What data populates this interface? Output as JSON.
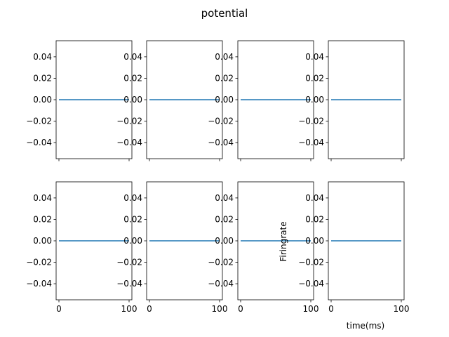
{
  "figure": {
    "title": "potential"
  },
  "chart_data": {
    "type": "line",
    "layout": {
      "rows": 2,
      "cols": 4
    },
    "x": [
      0,
      100
    ],
    "xlim": [
      -4,
      104
    ],
    "ylim": [
      -0.055,
      0.055
    ],
    "xticks": [
      0,
      100
    ],
    "yticks": [
      -0.04,
      -0.02,
      0.0,
      0.02,
      0.04
    ],
    "ytick_labels": [
      "−0.04",
      "−0.02",
      "0.00",
      "0.02",
      "0.04"
    ],
    "line_color": "#1f77b4",
    "xlabel": "time(ms)",
    "ylabel": "Firingrate",
    "subplots": [
      {
        "row": 0,
        "col": 0,
        "values": [
          0,
          0
        ]
      },
      {
        "row": 0,
        "col": 1,
        "values": [
          0,
          0
        ]
      },
      {
        "row": 0,
        "col": 2,
        "values": [
          0,
          0
        ]
      },
      {
        "row": 0,
        "col": 3,
        "values": [
          0,
          0
        ]
      },
      {
        "row": 1,
        "col": 0,
        "values": [
          0,
          0
        ]
      },
      {
        "row": 1,
        "col": 1,
        "values": [
          0,
          0
        ]
      },
      {
        "row": 1,
        "col": 2,
        "values": [
          0,
          0
        ]
      },
      {
        "row": 1,
        "col": 3,
        "values": [
          0,
          0
        ]
      }
    ]
  }
}
